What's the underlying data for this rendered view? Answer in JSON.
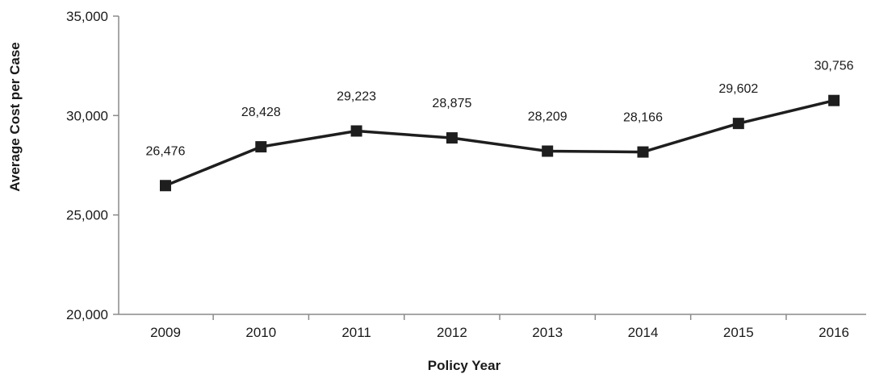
{
  "chart_data": {
    "type": "line",
    "title": "",
    "xlabel": "Policy Year",
    "ylabel": "Average Cost per Case",
    "categories": [
      "2009",
      "2010",
      "2011",
      "2012",
      "2013",
      "2014",
      "2015",
      "2016"
    ],
    "series": [
      {
        "values": [
          26476,
          28428,
          29223,
          28875,
          28209,
          28166,
          29602,
          30756
        ],
        "color": "#1e1e1e",
        "marker": "square"
      }
    ],
    "data_labels": [
      "26,476",
      "28,428",
      "29,223",
      "28,875",
      "28,209",
      "28,166",
      "29,602",
      "30,756"
    ],
    "ylim": [
      20000,
      35000
    ],
    "yticks": [
      20000,
      25000,
      30000,
      35000
    ],
    "ytick_labels": [
      "20,000",
      "25,000",
      "30,000",
      "35,000"
    ],
    "grid": false,
    "legend": "none"
  }
}
